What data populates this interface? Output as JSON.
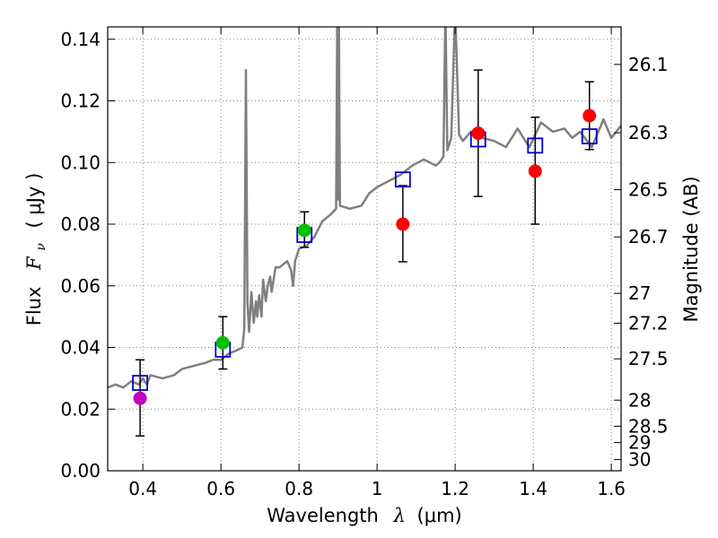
{
  "chart_data": {
    "type": "scatter",
    "xlabel_text": "Wavelength",
    "xlabel_symbol": "λ",
    "xlabel_unit": "(μm)",
    "ylabel_text": "Flux",
    "ylabel_symbol": "F",
    "ylabel_sub": "ν",
    "ylabel_unit": "( μJy )",
    "y2label": "Magnitude (AB)",
    "xlim": [
      0.31,
      1.625
    ],
    "ylim": [
      0.0,
      0.144
    ],
    "grid": true,
    "x_ticks": [
      0.4,
      0.6,
      0.8,
      1.0,
      1.2,
      1.4,
      1.6
    ],
    "x_tick_labels": [
      "0.4",
      "0.6",
      "0.8",
      "1",
      "1.2",
      "1.4",
      "1.6"
    ],
    "y_ticks": [
      0.0,
      0.02,
      0.04,
      0.06,
      0.08,
      0.1,
      0.12,
      0.14
    ],
    "y_tick_labels": [
      "0.00",
      "0.02",
      "0.04",
      "0.06",
      "0.08",
      "0.10",
      "0.12",
      "0.14"
    ],
    "magnitude_ticks": [
      {
        "mag": 26.1,
        "label": "26.1"
      },
      {
        "mag": 26.3,
        "label": "26.3"
      },
      {
        "mag": 26.5,
        "label": "26.5"
      },
      {
        "mag": 26.7,
        "label": "26.7"
      },
      {
        "mag": 27.0,
        "label": "27"
      },
      {
        "mag": 27.2,
        "label": "27.2"
      },
      {
        "mag": 27.5,
        "label": "27.5"
      },
      {
        "mag": 28.0,
        "label": "28"
      },
      {
        "mag": 28.5,
        "label": "28.5"
      },
      {
        "mag": 29.0,
        "label": "29"
      },
      {
        "mag": 30.0,
        "label": "30"
      }
    ],
    "colors": {
      "model": "#7f7f7f",
      "model_box": "#0000cc",
      "magenta": "#bf00bf",
      "green": "#00c000",
      "red": "#ff0000",
      "errorbar": "#000000",
      "grid": "#808080"
    },
    "observed": [
      {
        "x": 0.393,
        "y": 0.0235,
        "yerr_low": 0.0122,
        "yerr_high": 0.0125,
        "color": "magenta"
      },
      {
        "x": 0.605,
        "y": 0.0415,
        "yerr_low": 0.0085,
        "yerr_high": 0.0085,
        "color": "green"
      },
      {
        "x": 0.814,
        "y": 0.078,
        "yerr_low": 0.0055,
        "yerr_high": 0.006,
        "color": "green"
      },
      {
        "x": 1.066,
        "y": 0.08,
        "yerr_low": 0.0122,
        "yerr_high": 0.0125,
        "color": "red"
      },
      {
        "x": 1.259,
        "y": 0.1095,
        "yerr_low": 0.0205,
        "yerr_high": 0.0205,
        "color": "red"
      },
      {
        "x": 1.405,
        "y": 0.0972,
        "yerr_low": 0.0172,
        "yerr_high": 0.0175,
        "color": "red"
      },
      {
        "x": 1.544,
        "y": 0.1152,
        "yerr_low": 0.011,
        "yerr_high": 0.011,
        "color": "red"
      }
    ],
    "model_photometry": [
      {
        "x": 0.393,
        "y": 0.0285
      },
      {
        "x": 0.605,
        "y": 0.0393
      },
      {
        "x": 0.814,
        "y": 0.0765
      },
      {
        "x": 1.066,
        "y": 0.0945
      },
      {
        "x": 1.259,
        "y": 0.1075
      },
      {
        "x": 1.405,
        "y": 0.1055
      },
      {
        "x": 1.544,
        "y": 0.1085
      }
    ],
    "model_spectrum": {
      "x": [
        0.31,
        0.33,
        0.35,
        0.37,
        0.39,
        0.4,
        0.41,
        0.42,
        0.45,
        0.48,
        0.5,
        0.53,
        0.56,
        0.58,
        0.6,
        0.62,
        0.64,
        0.655,
        0.66,
        0.664,
        0.668,
        0.672,
        0.678,
        0.684,
        0.69,
        0.693,
        0.698,
        0.704,
        0.708,
        0.715,
        0.72,
        0.726,
        0.73,
        0.74,
        0.75,
        0.76,
        0.77,
        0.78,
        0.785,
        0.79,
        0.795,
        0.8,
        0.82,
        0.84,
        0.86,
        0.88,
        0.895,
        0.898,
        0.9,
        0.902,
        0.905,
        0.93,
        0.96,
        0.98,
        1.0,
        1.03,
        1.06,
        1.09,
        1.12,
        1.15,
        1.16,
        1.17,
        1.175,
        1.18,
        1.19,
        1.2,
        1.21,
        1.22,
        1.24,
        1.27,
        1.3,
        1.33,
        1.36,
        1.39,
        1.42,
        1.45,
        1.48,
        1.5,
        1.52,
        1.55,
        1.58,
        1.6,
        1.625
      ],
      "y": [
        0.027,
        0.028,
        0.027,
        0.029,
        0.028,
        0.03,
        0.028,
        0.031,
        0.03,
        0.031,
        0.033,
        0.034,
        0.035,
        0.036,
        0.036,
        0.038,
        0.039,
        0.04,
        0.046,
        0.13,
        0.055,
        0.045,
        0.058,
        0.048,
        0.055,
        0.05,
        0.057,
        0.05,
        0.062,
        0.055,
        0.06,
        0.063,
        0.058,
        0.066,
        0.066,
        0.067,
        0.068,
        0.065,
        0.06,
        0.068,
        0.07,
        0.072,
        0.073,
        0.076,
        0.081,
        0.083,
        0.085,
        0.15,
        0.088,
        0.15,
        0.086,
        0.085,
        0.086,
        0.09,
        0.092,
        0.094,
        0.096,
        0.099,
        0.101,
        0.099,
        0.1,
        0.102,
        0.15,
        0.104,
        0.108,
        0.15,
        0.109,
        0.107,
        0.11,
        0.108,
        0.107,
        0.105,
        0.111,
        0.105,
        0.113,
        0.11,
        0.111,
        0.108,
        0.11,
        0.105,
        0.114,
        0.108,
        0.112
      ]
    }
  }
}
